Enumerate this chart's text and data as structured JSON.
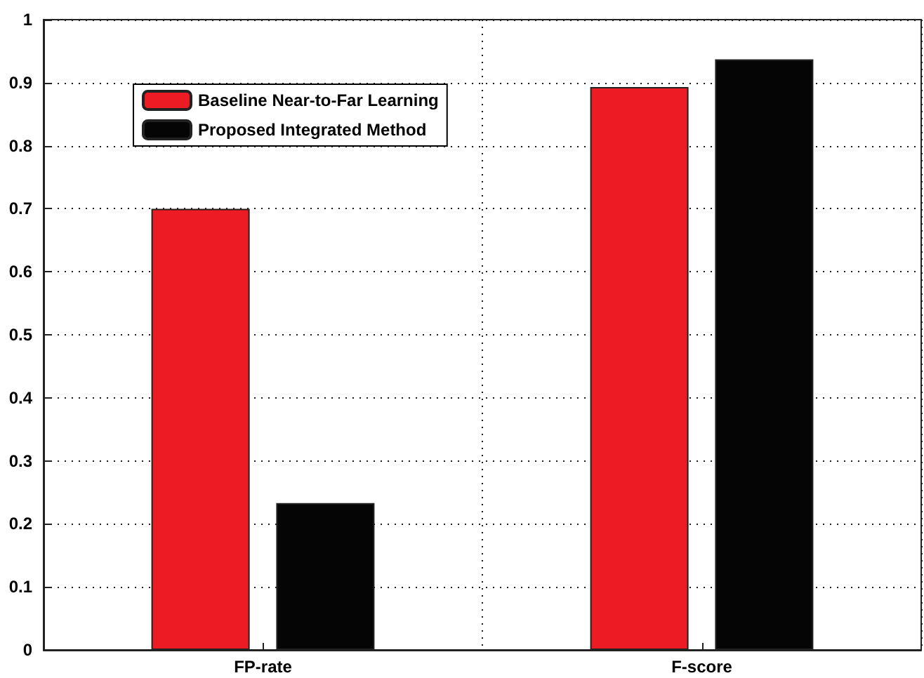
{
  "chart_data": {
    "type": "bar",
    "categories": [
      "FP-rate",
      "F-score"
    ],
    "series": [
      {
        "name": "Baseline Near-to-Far Learning",
        "color": "#ed1c24",
        "values": [
          0.7,
          0.893
        ]
      },
      {
        "name": "Proposed Integrated Method",
        "color": "#050505",
        "values": [
          0.233,
          0.937
        ]
      }
    ],
    "ylim": [
      0,
      1
    ],
    "yticks": [
      0,
      0.1,
      0.2,
      0.3,
      0.4,
      0.5,
      0.6,
      0.7,
      0.8,
      0.9,
      1
    ],
    "grid": true,
    "legend": "top left"
  }
}
